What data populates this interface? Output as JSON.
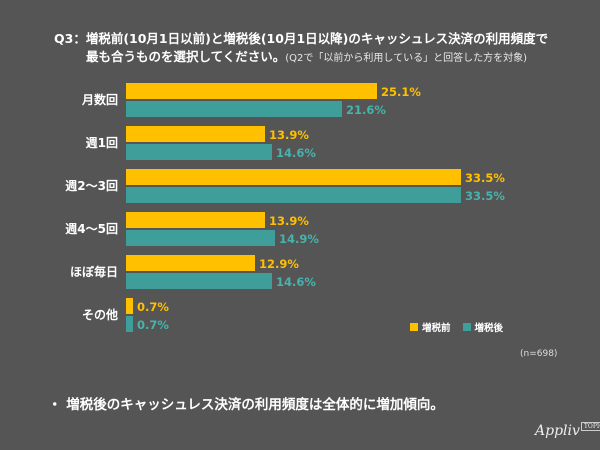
{
  "title": {
    "line1": "Q3：増税前(10月1日以前)と増税後(10月1日以降)のキャッシュレス決済の利用頻度で",
    "line2": "最も合うものを選択してください。",
    "line2_note": "(Q2で「以前から利用している」と回答した方を対象)"
  },
  "chart_data": {
    "type": "bar",
    "orientation": "horizontal",
    "categories": [
      "月数回",
      "週1回",
      "週2～3回",
      "週4～5回",
      "ほぼ毎日",
      "その他"
    ],
    "series": [
      {
        "name": "増税前",
        "color": "#FFC000",
        "values": [
          25.1,
          13.9,
          33.5,
          13.9,
          12.9,
          0.7
        ]
      },
      {
        "name": "増税後",
        "color": "#3F9E99",
        "values": [
          21.6,
          14.6,
          33.5,
          14.9,
          14.6,
          0.7
        ]
      }
    ],
    "value_suffix": "%",
    "legend": "bottom-right",
    "grid": false
  },
  "sample": "(n=698)",
  "bullet": "・ 増税後のキャッシュレス決済の利用頻度は全体的に増加傾向。",
  "logo": {
    "text": "Appliv",
    "badge": "TOPICS"
  }
}
